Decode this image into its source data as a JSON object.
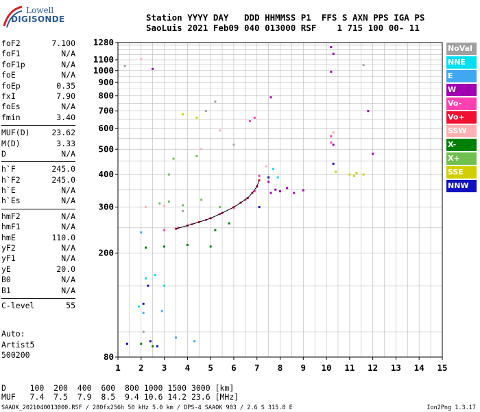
{
  "logo": {
    "line1": "Lowell",
    "line2": "DIGISONDE"
  },
  "header": {
    "line1": "Station YYYY DAY   DDD HHMMSS P1  FFS S AXN PPS IGA PS",
    "line2": "SaoLuis 2021 Feb09 040 013000 RSF    1 715 100 00- 11"
  },
  "params": [
    {
      "label": "foF2",
      "value": "7.100"
    },
    {
      "label": "foF1",
      "value": "N/A"
    },
    {
      "label": "foF1p",
      "value": "N/A"
    },
    {
      "label": "foE",
      "value": "N/A"
    },
    {
      "label": "foEp",
      "value": "0.35"
    },
    {
      "label": "fxI",
      "value": "7.90"
    },
    {
      "label": "foEs",
      "value": "N/A"
    },
    {
      "label": "fmin",
      "value": "3.40"
    },
    {
      "sep": true
    },
    {
      "label": "MUF(D)",
      "value": "23.62"
    },
    {
      "label": "M(D)",
      "value": "3.33"
    },
    {
      "label": "D",
      "value": "N/A"
    },
    {
      "sep": true
    },
    {
      "label": "h`F",
      "value": "245.0"
    },
    {
      "label": "h`F2",
      "value": "245.0"
    },
    {
      "label": "h`E",
      "value": "N/A"
    },
    {
      "label": "h`Es",
      "value": "N/A"
    },
    {
      "sep": true
    },
    {
      "label": "hmF2",
      "value": "N/A"
    },
    {
      "label": "hmF1",
      "value": "N/A"
    },
    {
      "label": "hmE",
      "value": "110.0"
    },
    {
      "label": "yF2",
      "value": "N/A"
    },
    {
      "label": "yF1",
      "value": "N/A"
    },
    {
      "label": "yE",
      "value": "20.0"
    },
    {
      "label": "B0",
      "value": "N/A"
    },
    {
      "label": "B1",
      "value": "N/A"
    },
    {
      "sep": true
    },
    {
      "label": "C-level",
      "value": "55"
    }
  ],
  "auto": {
    "line1": "Auto:",
    "line2": "Artist5",
    "line3": "500200"
  },
  "legend": [
    {
      "label": "NoVal",
      "color": "#a0a0a0"
    },
    {
      "label": "NNE",
      "color": "#00e0f0"
    },
    {
      "label": "E",
      "color": "#40a8f0"
    },
    {
      "label": "W",
      "color": "#a000b0"
    },
    {
      "label": "Vo-",
      "color": "#ff40b0"
    },
    {
      "label": "Vo+",
      "color": "#f01030"
    },
    {
      "label": "SSW",
      "color": "#ffb0b0"
    },
    {
      "label": "X-",
      "color": "#008000"
    },
    {
      "label": "X+",
      "color": "#70c050"
    },
    {
      "label": "SSE",
      "color": "#d0d000"
    },
    {
      "label": "NNW",
      "color": "#1010c0"
    }
  ],
  "muf_table": {
    "line1": "D     100  200  400  600  800 1000 1500 3000 [km]",
    "line2": "MUF   7.4  7.5  7.9  8.5  9.4 10.6 14.2 23.6 [MHz]"
  },
  "footer": {
    "left": "SAAOK_2021040013000.RSF / 280fx256h 50 kHz 5.0 km / DPS-4 SAAOK 903 / 2.6 S 315.8 E",
    "right": "Ion2Png 1.3.17"
  },
  "chart_data": {
    "type": "scatter",
    "title": "",
    "xlabel": "",
    "ylabel": "",
    "xlim": [
      1,
      15
    ],
    "x_ticks": [
      1,
      2,
      3,
      4,
      5,
      6,
      7,
      8,
      9,
      10,
      11,
      12,
      13,
      14,
      15
    ],
    "ylim": [
      80,
      1280
    ],
    "y_ticks": [
      80,
      200,
      300,
      400,
      500,
      600,
      700,
      800,
      900,
      1000,
      1100,
      1280
    ],
    "y_scale": "log",
    "grid": true,
    "series": [
      {
        "name": "Vo+",
        "color": "#f01030",
        "points": [
          [
            3.5,
            248
          ],
          [
            4.0,
            255
          ],
          [
            4.5,
            263
          ],
          [
            5.0,
            272
          ],
          [
            5.5,
            285
          ],
          [
            6.0,
            300
          ],
          [
            6.3,
            312
          ],
          [
            6.6,
            325
          ],
          [
            6.8,
            340
          ],
          [
            7.0,
            360
          ],
          [
            7.1,
            380
          ]
        ]
      },
      {
        "name": "Vo-",
        "color": "#ff40b0",
        "points": [
          [
            3.0,
            245
          ],
          [
            3.6,
            250
          ],
          [
            4.2,
            258
          ],
          [
            4.8,
            268
          ],
          [
            5.4,
            282
          ],
          [
            6.0,
            298
          ],
          [
            6.5,
            320
          ],
          [
            6.9,
            345
          ],
          [
            7.1,
            395
          ],
          [
            6.7,
            640
          ],
          [
            6.9,
            660
          ],
          [
            10.2,
            530
          ],
          [
            10.2,
            560
          ]
        ]
      },
      {
        "name": "W",
        "color": "#a000b0",
        "points": [
          [
            7.6,
            340
          ],
          [
            7.8,
            350
          ],
          [
            8.0,
            345
          ],
          [
            8.3,
            355
          ],
          [
            8.6,
            340
          ],
          [
            9.0,
            348
          ],
          [
            7.5,
            375
          ],
          [
            10.2,
            1230
          ],
          [
            10.3,
            1160
          ],
          [
            11.8,
            700
          ],
          [
            12.0,
            480
          ],
          [
            10.3,
            520
          ],
          [
            2.5,
            1015
          ],
          [
            7.6,
            790
          ],
          [
            10.2,
            990
          ]
        ]
      },
      {
        "name": "X-",
        "color": "#008000",
        "points": [
          [
            2.2,
            210
          ],
          [
            3.0,
            212
          ],
          [
            4.0,
            215
          ],
          [
            5.0,
            212
          ],
          [
            2.0,
            90
          ],
          [
            2.5,
            88
          ],
          [
            5.2,
            245
          ],
          [
            5.8,
            260
          ]
        ]
      },
      {
        "name": "X+",
        "color": "#70c050",
        "points": [
          [
            2.8,
            310
          ],
          [
            3.2,
            315
          ],
          [
            3.8,
            305
          ],
          [
            4.6,
            320
          ],
          [
            3.4,
            460
          ],
          [
            4.4,
            470
          ],
          [
            3.2,
            400
          ],
          [
            5.4,
            300
          ]
        ]
      },
      {
        "name": "NNE",
        "color": "#00e0f0",
        "points": [
          [
            2.2,
            160
          ],
          [
            2.6,
            165
          ],
          [
            3.0,
            150
          ],
          [
            7.7,
            420
          ],
          [
            7.9,
            390
          ],
          [
            1.9,
            125
          ]
        ]
      },
      {
        "name": "E",
        "color": "#40a8f0",
        "points": [
          [
            2.1,
            118
          ],
          [
            2.9,
            120
          ],
          [
            3.5,
            95
          ],
          [
            4.3,
            92
          ],
          [
            2.0,
            240
          ]
        ]
      },
      {
        "name": "NNW",
        "color": "#1010c0",
        "points": [
          [
            1.4,
            90
          ],
          [
            2.4,
            92
          ],
          [
            2.7,
            88
          ],
          [
            7.5,
            390
          ],
          [
            10.3,
            440
          ],
          [
            7.1,
            300
          ],
          [
            2.1,
            128
          ],
          [
            2.3,
            150
          ]
        ]
      },
      {
        "name": "SSE",
        "color": "#d0d000",
        "points": [
          [
            11.0,
            400
          ],
          [
            11.3,
            405
          ],
          [
            11.6,
            400
          ],
          [
            11.2,
            395
          ],
          [
            10.4,
            410
          ],
          [
            4.4,
            660
          ],
          [
            3.8,
            680
          ]
        ]
      },
      {
        "name": "SSW",
        "color": "#ffb0b0",
        "points": [
          [
            2.2,
            300
          ],
          [
            3.0,
            303
          ],
          [
            4.6,
            500
          ],
          [
            5.4,
            590
          ],
          [
            10.3,
            580
          ],
          [
            7.4,
            430
          ],
          [
            2.0,
            1110
          ]
        ]
      },
      {
        "name": "NoVal",
        "color": "#a0a0a0",
        "points": [
          [
            1.3,
            1040
          ],
          [
            2.1,
            100
          ],
          [
            3.8,
            290
          ],
          [
            4.8,
            700
          ],
          [
            5.2,
            760
          ],
          [
            6.0,
            520
          ],
          [
            11.6,
            1050
          ]
        ]
      }
    ]
  }
}
